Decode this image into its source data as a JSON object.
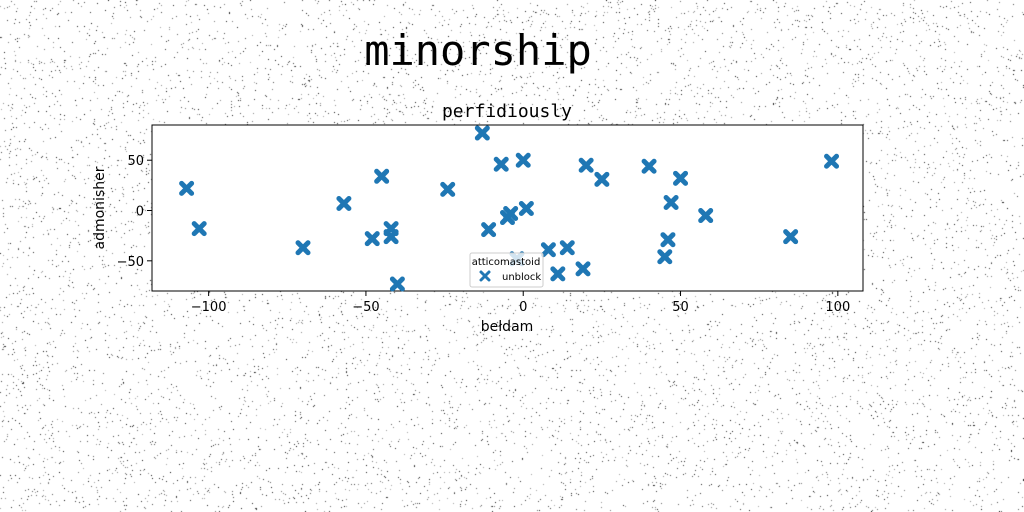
{
  "suptitle": "minorship",
  "chart_data": {
    "type": "scatter",
    "title": "perfidiously",
    "xlabel": "bełdam",
    "ylabel": "admonisher",
    "xlim": [
      -118,
      108
    ],
    "ylim": [
      -80,
      85
    ],
    "xticks": [
      -100,
      -50,
      0,
      50,
      100
    ],
    "yticks": [
      -50,
      0,
      50
    ],
    "marker": "X",
    "color": "#1f77b4",
    "grid": false,
    "legend": {
      "title": "atticomastoid",
      "placement": "lower-center"
    },
    "series": [
      {
        "name": "unblock",
        "x": [
          -107,
          -103,
          -70,
          -57,
          -48,
          -45,
          -42,
          -42,
          -40,
          -24,
          -13,
          -11,
          -7,
          -5,
          -4,
          -2,
          0,
          1,
          8,
          11,
          14,
          19,
          20,
          25,
          40,
          45,
          46,
          47,
          50,
          58,
          85,
          98
        ],
        "y": [
          22,
          -18,
          -37,
          7,
          -28,
          34,
          -18,
          -26,
          -73,
          21,
          77,
          -19,
          46,
          -7,
          -3,
          -48,
          50,
          2,
          -39,
          -63,
          -37,
          -58,
          45,
          31,
          44,
          -46,
          -29,
          8,
          32,
          -5,
          -26,
          49
        ]
      }
    ]
  }
}
